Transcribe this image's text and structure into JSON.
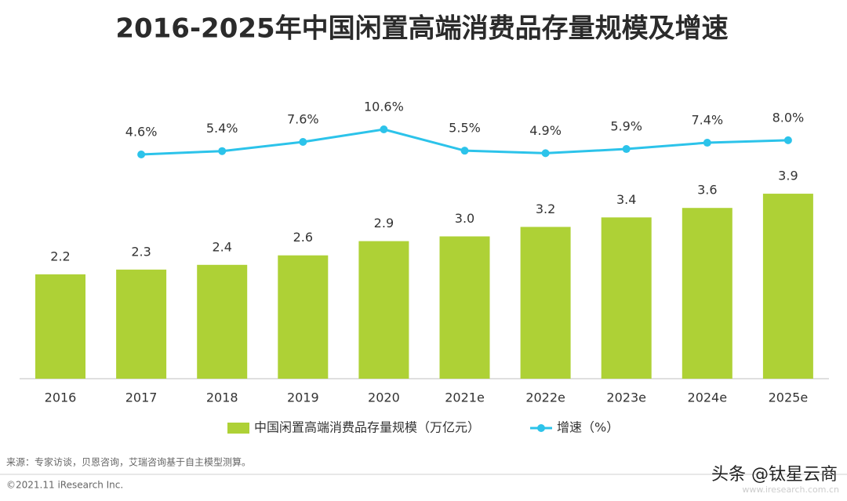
{
  "chart_data": {
    "type": "bar-line",
    "title": "2016-2025年中国闲置高端消费品存量规模及增速",
    "categories": [
      "2016",
      "2017",
      "2018",
      "2019",
      "2020",
      "2021e",
      "2022e",
      "2023e",
      "2024e",
      "2025e"
    ],
    "series": [
      {
        "name": "中国闲置高端消费品存量规模（万亿元）",
        "type": "bar",
        "color": "#aed136",
        "values": [
          2.2,
          2.3,
          2.4,
          2.6,
          2.9,
          3.0,
          3.2,
          3.4,
          3.6,
          3.9
        ],
        "value_labels": [
          "2.2",
          "2.3",
          "2.4",
          "2.6",
          "2.9",
          "3.0",
          "3.2",
          "3.4",
          "3.6",
          "3.9"
        ]
      },
      {
        "name": "增速（%）",
        "type": "line",
        "color": "#2cc3ea",
        "axis": "y2",
        "values": [
          null,
          4.6,
          5.4,
          7.6,
          10.6,
          5.5,
          4.9,
          5.9,
          7.4,
          8.0
        ],
        "value_labels": [
          null,
          "4.6%",
          "5.4%",
          "7.6%",
          "10.6%",
          "5.5%",
          "4.9%",
          "5.9%",
          "7.4%",
          "8.0%"
        ]
      }
    ],
    "source": "来源：专家访谈，贝恩咨询，艾瑞咨询基于自主模型测算。",
    "copyright": "©2021.11 iResearch Inc.",
    "website": "www.iresearch.com.cn",
    "watermark": "头条 @钛星云商"
  }
}
